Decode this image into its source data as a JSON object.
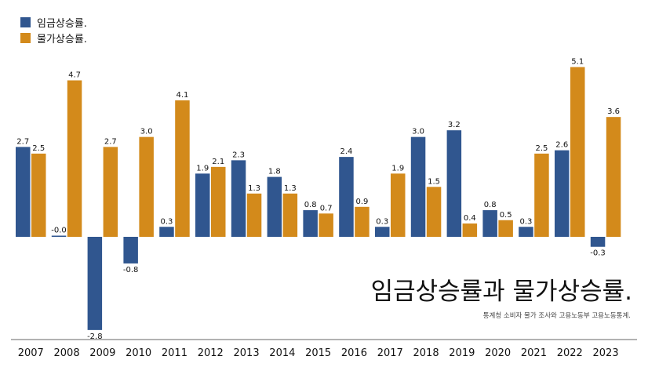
{
  "title": "임금상승률과 물가상승률.",
  "source": "통계청 소비자 물가 조사와 고용노동부 고용노동통계.",
  "colors": {
    "wage": "#30568f",
    "price": "#d38a1b"
  },
  "chart_data": {
    "type": "bar",
    "categories": [
      "2007",
      "2008",
      "2009",
      "2010",
      "2011",
      "2012",
      "2013",
      "2014",
      "2015",
      "2016",
      "2017",
      "2018",
      "2019",
      "2020",
      "2021",
      "2022",
      "2023"
    ],
    "series": [
      {
        "name": "임금상승률.",
        "values": [
          2.7,
          -0.0,
          -2.8,
          -0.8,
          0.3,
          1.9,
          2.3,
          1.8,
          0.8,
          2.4,
          0.3,
          3.0,
          3.2,
          0.8,
          0.3,
          2.6,
          -0.3
        ],
        "labels": [
          "2.7",
          "-0.0",
          "-2.8",
          "-0.8",
          "0.3",
          "1.9",
          "2.3",
          "1.8",
          "0.8",
          "2.4",
          "0.3",
          "3.0",
          "3.2",
          "0.8",
          "0.3",
          "2.6",
          "-0.3"
        ]
      },
      {
        "name": "물가상승률.",
        "values": [
          2.5,
          4.7,
          2.7,
          3.0,
          4.1,
          2.1,
          1.3,
          1.3,
          0.7,
          0.9,
          1.9,
          1.5,
          0.4,
          0.5,
          2.5,
          5.1,
          3.6
        ],
        "labels": [
          "2.5",
          "4.7",
          "2.7",
          "3.0",
          "4.1",
          "2.1",
          "1.3",
          "1.3",
          "0.7",
          "0.9",
          "1.9",
          "1.5",
          "0.4",
          "0.5",
          "2.5",
          "5.1",
          "3.6"
        ]
      }
    ],
    "ylim": [
      -2.8,
      5.1
    ],
    "grid": false,
    "legend": "top-left"
  }
}
